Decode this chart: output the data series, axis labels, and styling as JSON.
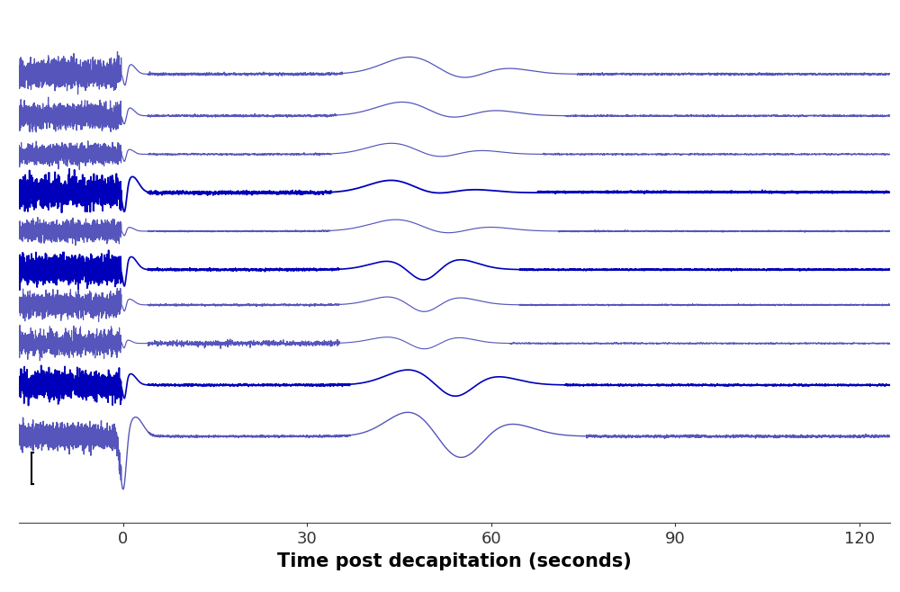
{
  "xlabel": "Time post decapitation (seconds)",
  "xlabel_fontsize": 15,
  "xlabel_fontweight": "bold",
  "xlim": [
    -17,
    125
  ],
  "xticks": [
    0,
    30,
    60,
    90,
    120
  ],
  "xticklabels": [
    "0",
    "30",
    "60",
    "90",
    "120"
  ],
  "tick_fontsize": 13,
  "background_color": "#ffffff",
  "line_color_dark": "#0000bb",
  "line_color_light": "#5555bb",
  "n_traces": 10
}
